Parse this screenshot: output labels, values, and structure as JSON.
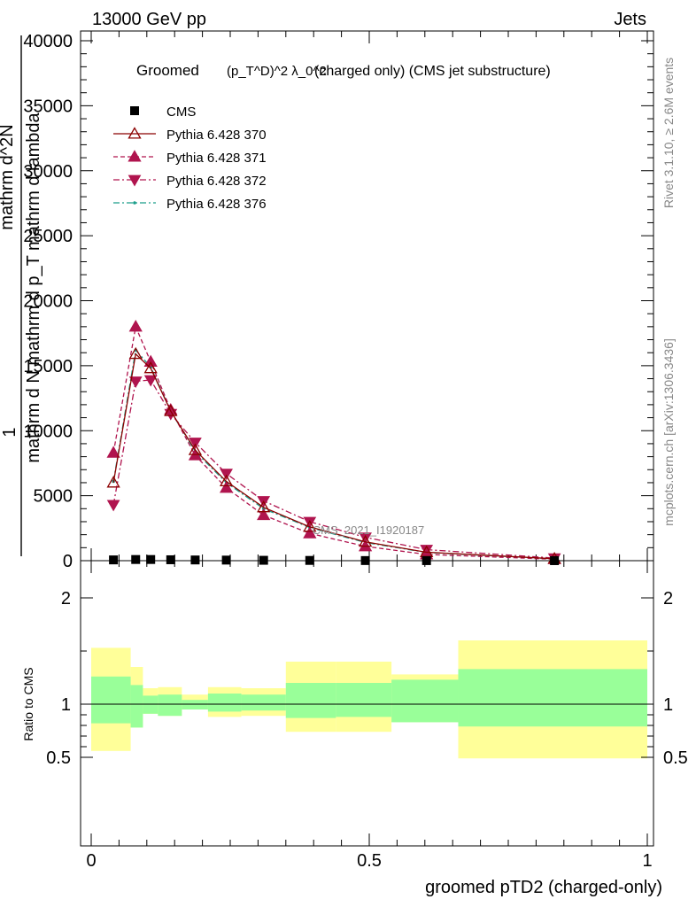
{
  "header": {
    "left": "13000 GeV pp",
    "right": "Jets"
  },
  "side_labels": {
    "rivet": "Rivet 3.1.10, ≥ 2.6M events",
    "mcplots": "mcplots.cern.ch [arXiv:1306.3436]"
  },
  "watermark": "CMS_2021_I1920187",
  "chart_data": [
    {
      "type": "line",
      "title_parts": {
        "prefix": "Groomed",
        "formula": "(p_T^D)^2 λ_0^2",
        "suffix": "(charged only) (CMS jet substructure)"
      },
      "ylabel_lines": [
        "1",
        "mathrm d N mathrm d p_T mathrm d lambda",
        "mathrm d^2N"
      ],
      "xlim": [
        0,
        1
      ],
      "ylim": [
        0,
        40000
      ],
      "y_ticks": [
        0,
        5000,
        10000,
        15000,
        20000,
        25000,
        30000,
        35000,
        40000
      ],
      "y_tick_labels": [
        "0",
        "5000",
        "10000",
        "15000",
        "20000",
        "25000",
        "30000",
        "35000",
        "40000"
      ],
      "legend_position": "top-left",
      "series": [
        {
          "name": "CMS",
          "color": "#000000",
          "marker": "square",
          "line": "none",
          "x": [
            0.04,
            0.08,
            0.107,
            0.143,
            0.187,
            0.243,
            0.31,
            0.393,
            0.493,
            0.603,
            0.833
          ],
          "y": [
            60,
            90,
            90,
            70,
            55,
            45,
            30,
            20,
            10,
            5,
            2
          ]
        },
        {
          "name": "Pythia 6.428 370",
          "color": "#8b0000",
          "marker": "triangle-up-open",
          "line": "solid",
          "x": [
            0.04,
            0.08,
            0.107,
            0.143,
            0.187,
            0.243,
            0.31,
            0.393,
            0.493,
            0.603,
            0.833
          ],
          "y": [
            6000,
            15900,
            14800,
            11500,
            8500,
            6100,
            4100,
            2600,
            1450,
            650,
            150
          ]
        },
        {
          "name": "Pythia 6.428 371",
          "color": "#b0144e",
          "marker": "triangle-up",
          "line": "dashed",
          "x": [
            0.04,
            0.08,
            0.107,
            0.143,
            0.187,
            0.243,
            0.31,
            0.393,
            0.493,
            0.603,
            0.833
          ],
          "y": [
            8300,
            18000,
            15300,
            11600,
            8100,
            5600,
            3500,
            2100,
            1100,
            480,
            110
          ]
        },
        {
          "name": "Pythia 6.428 372",
          "color": "#b0144e",
          "marker": "triangle-down",
          "line": "dashdot",
          "x": [
            0.04,
            0.08,
            0.107,
            0.143,
            0.187,
            0.243,
            0.31,
            0.393,
            0.493,
            0.603,
            0.833
          ],
          "y": [
            4300,
            13800,
            13900,
            11300,
            9100,
            6700,
            4600,
            3000,
            1800,
            850,
            200
          ]
        },
        {
          "name": "Pythia 6.428 376",
          "color": "#1a9e8a",
          "marker": "dot",
          "line": "dashdot",
          "x": [
            0.04,
            0.08,
            0.107,
            0.143,
            0.187,
            0.243,
            0.31,
            0.393,
            0.493,
            0.603,
            0.833
          ],
          "y": [
            6100,
            16200,
            14900,
            11500,
            8400,
            6000,
            4000,
            2550,
            1400,
            630,
            140
          ]
        }
      ]
    },
    {
      "type": "area",
      "ylabel": "Ratio to CMS",
      "xlabel": "groomed pTD2 (charged-only)",
      "xlim": [
        0,
        1
      ],
      "ylim": [
        0.35,
        2.35
      ],
      "x_ticks": [
        0,
        0.5,
        1
      ],
      "x_tick_labels": [
        "0",
        "0.5",
        "1"
      ],
      "y_ticks": [
        0.5,
        1,
        2
      ],
      "y_tick_labels": [
        "0.5",
        "1",
        "2"
      ],
      "reference_line": 1,
      "bins": [
        {
          "lo": 0.0,
          "hi": 0.071,
          "stat": [
            0.82,
            1.26
          ],
          "total": [
            0.56,
            1.53
          ]
        },
        {
          "lo": 0.071,
          "hi": 0.093,
          "stat": [
            0.78,
            1.18
          ],
          "total": [
            0.78,
            1.35
          ]
        },
        {
          "lo": 0.093,
          "hi": 0.12,
          "stat": [
            0.91,
            1.08
          ],
          "total": [
            0.91,
            1.15
          ]
        },
        {
          "lo": 0.12,
          "hi": 0.163,
          "stat": [
            0.89,
            1.09
          ],
          "total": [
            0.89,
            1.16
          ]
        },
        {
          "lo": 0.163,
          "hi": 0.21,
          "stat": [
            0.95,
            1.04
          ],
          "total": [
            0.95,
            1.09
          ]
        },
        {
          "lo": 0.21,
          "hi": 0.27,
          "stat": [
            0.93,
            1.1
          ],
          "total": [
            0.88,
            1.16
          ]
        },
        {
          "lo": 0.27,
          "hi": 0.35,
          "stat": [
            0.94,
            1.09
          ],
          "total": [
            0.89,
            1.15
          ]
        },
        {
          "lo": 0.35,
          "hi": 0.44,
          "stat": [
            0.87,
            1.2
          ],
          "total": [
            0.74,
            1.4
          ]
        },
        {
          "lo": 0.44,
          "hi": 0.54,
          "stat": [
            0.88,
            1.2
          ],
          "total": [
            0.74,
            1.4
          ]
        },
        {
          "lo": 0.54,
          "hi": 0.66,
          "stat": [
            0.83,
            1.23
          ],
          "total": [
            0.83,
            1.28
          ]
        },
        {
          "lo": 0.66,
          "hi": 1.0,
          "stat": [
            0.79,
            1.33
          ],
          "total": [
            0.49,
            1.6
          ]
        }
      ],
      "colors": {
        "stat": "#99ff99",
        "total": "#ffff99"
      }
    }
  ]
}
